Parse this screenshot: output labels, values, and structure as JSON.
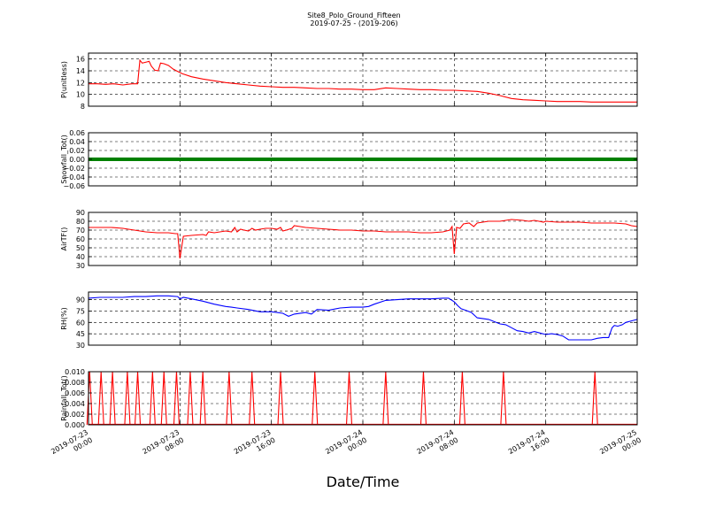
{
  "chart_data": {
    "type": "line",
    "title": "Site8_Polo_Ground_Fifteen",
    "subtitle": "2019-07-25 - (2019-206)",
    "xlabel": "Date/Time",
    "grid": true,
    "x_range": [
      "2019-07-23 00:00",
      "2019-07-25 00:00"
    ],
    "x_ticks": [
      {
        "t": 0,
        "label": [
          "2019-07-23",
          "00:00"
        ]
      },
      {
        "t": 8,
        "label": [
          "2019-07-23",
          "08:00"
        ]
      },
      {
        "t": 16,
        "label": [
          "2019-07-23",
          "16:00"
        ]
      },
      {
        "t": 24,
        "label": [
          "2019-07-24",
          "00:00"
        ]
      },
      {
        "t": 32,
        "label": [
          "2019-07-24",
          "08:00"
        ]
      },
      {
        "t": 40,
        "label": [
          "2019-07-24",
          "16:00"
        ]
      },
      {
        "t": 48,
        "label": [
          "2019-07-25",
          "00:00"
        ]
      }
    ],
    "panels": [
      {
        "ylabel": "P(unitless)",
        "ylim": [
          8,
          17
        ],
        "yticks": [
          8,
          10,
          12,
          14,
          16
        ],
        "tick_labels": [
          "8",
          "10",
          "12",
          "14",
          "16"
        ],
        "color": "#ff0000",
        "style": "line",
        "x": [
          0,
          0.8,
          1.5,
          2.2,
          3.0,
          3.8,
          4.3,
          4.5,
          4.7,
          5.1,
          5.3,
          5.5,
          5.8,
          6.1,
          6.3,
          6.6,
          7.0,
          7.4,
          7.8,
          8.2,
          9.0,
          10.0,
          11.0,
          12.0,
          13.0,
          14.0,
          15.0,
          16.0,
          17.0,
          18.0,
          19.0,
          20.0,
          21.0,
          22.0,
          23.0,
          24.0,
          25.0,
          26.0,
          27.0,
          28.0,
          29.0,
          30.0,
          31.0,
          32.0,
          33.0,
          34.0,
          35.0,
          36.0,
          37.0,
          38.0,
          39.0,
          40.0,
          41.0,
          42.0,
          43.0,
          44.0,
          45.0,
          46.0,
          47.0,
          48.0
        ],
        "y": [
          11.8,
          11.8,
          11.7,
          11.8,
          11.6,
          11.8,
          11.8,
          15.8,
          15.3,
          15.5,
          15.6,
          14.8,
          14.1,
          14.0,
          15.3,
          15.2,
          14.9,
          14.3,
          13.9,
          13.5,
          13.0,
          12.6,
          12.3,
          12.0,
          11.8,
          11.6,
          11.4,
          11.3,
          11.2,
          11.2,
          11.1,
          11.0,
          11.0,
          10.9,
          10.9,
          10.8,
          10.8,
          11.1,
          11.0,
          10.9,
          10.8,
          10.8,
          10.7,
          10.7,
          10.6,
          10.5,
          10.2,
          9.8,
          9.3,
          9.1,
          9.0,
          8.9,
          8.8,
          8.8,
          8.8,
          8.7,
          8.7,
          8.7,
          8.7,
          8.7
        ]
      },
      {
        "ylabel": "Snowfall_Tot()",
        "ylim": [
          -0.06,
          0.06
        ],
        "yticks": [
          -0.06,
          -0.04,
          -0.02,
          0.0,
          0.02,
          0.04,
          0.06
        ],
        "tick_labels": [
          "−0.06",
          "−0.04",
          "−0.02",
          "0.00",
          "0.02",
          "0.04",
          "0.06"
        ],
        "color": "#008000",
        "style": "markers",
        "x": [
          0,
          48
        ],
        "y": [
          0.0,
          0.0
        ]
      },
      {
        "ylabel": "AirTF()",
        "ylim": [
          30,
          90
        ],
        "yticks": [
          30,
          40,
          50,
          60,
          70,
          80,
          90
        ],
        "tick_labels": [
          "30",
          "40",
          "50",
          "60",
          "70",
          "80",
          "90"
        ],
        "color": "#ff0000",
        "style": "line",
        "x": [
          0,
          1,
          2,
          3,
          4,
          5,
          6,
          7,
          7.6,
          7.8,
          8.0,
          8.3,
          9,
          10,
          10.3,
          10.5,
          11,
          12,
          12.5,
          12.8,
          13.0,
          13.3,
          13.6,
          14,
          14.3,
          14.6,
          15,
          15.5,
          16,
          16.5,
          16.8,
          17,
          17.3,
          17.8,
          18,
          18.5,
          19,
          20,
          21,
          22,
          23,
          24,
          25,
          26,
          27,
          28,
          29,
          30,
          31,
          31.6,
          31.8,
          32.0,
          32.2,
          32.5,
          32.8,
          33.3,
          33.7,
          34,
          35,
          36,
          36.5,
          37,
          38,
          38.5,
          39,
          39.4,
          39.8,
          40,
          41,
          42,
          43,
          44,
          45,
          46,
          47,
          47.5,
          48
        ],
        "y": [
          73,
          73,
          73,
          72,
          70,
          68,
          67,
          67,
          66,
          66,
          38,
          63,
          64,
          65,
          64,
          68,
          67,
          69,
          68,
          73,
          68,
          71,
          70,
          69,
          72,
          70,
          71,
          72,
          72,
          71,
          73,
          69,
          70,
          72,
          75,
          74,
          73,
          72,
          71,
          70,
          70,
          69,
          69,
          68,
          68,
          68,
          67,
          67,
          68,
          70,
          74,
          43,
          73,
          72,
          77,
          78,
          74,
          78,
          80,
          80,
          81,
          82,
          81,
          80,
          81,
          80,
          79,
          80,
          79,
          79,
          79,
          78,
          78,
          78,
          77,
          75,
          74
        ]
      },
      {
        "ylabel": "RH(%)",
        "ylim": [
          30,
          100
        ],
        "yticks": [
          30,
          45,
          60,
          75,
          90
        ],
        "tick_labels": [
          "30",
          "45",
          "60",
          "75",
          "90"
        ],
        "color": "#0000ff",
        "style": "line",
        "x": [
          0,
          1,
          2,
          3,
          4,
          5,
          6,
          7,
          7.8,
          8.0,
          8.3,
          9,
          10,
          11,
          12,
          12.5,
          13,
          14,
          15,
          16,
          16.5,
          17,
          17.5,
          18,
          19,
          19.5,
          20,
          21,
          22,
          23,
          24,
          24.5,
          25,
          26,
          27,
          28,
          29,
          30,
          31,
          31.5,
          32,
          32.3,
          32.6,
          33,
          33.5,
          34,
          35,
          36,
          36.5,
          37,
          37.5,
          38,
          38.5,
          39,
          39.5,
          40,
          40.5,
          41,
          41.5,
          42,
          43,
          44,
          44.5,
          45,
          45.5,
          45.8,
          46,
          46.3,
          46.7,
          47,
          47.5,
          48
        ],
        "y": [
          92,
          93,
          93,
          93,
          94,
          94,
          95,
          95,
          94,
          91,
          93,
          91,
          88,
          84,
          81,
          80,
          79,
          77,
          74,
          74,
          73,
          72,
          68,
          71,
          73,
          71,
          77,
          76,
          79,
          80,
          80,
          81,
          84,
          89,
          90,
          91,
          91,
          91,
          92,
          92,
          87,
          82,
          78,
          76,
          73,
          66,
          64,
          58,
          57,
          53,
          49,
          48,
          46,
          48,
          46,
          44,
          45,
          44,
          42,
          37,
          37,
          37,
          39,
          40,
          40,
          53,
          56,
          55,
          57,
          60,
          62,
          64
        ]
      },
      {
        "ylabel": "Rainfall_Tot()",
        "ylim": [
          0,
          0.01
        ],
        "yticks": [
          0.0,
          0.002,
          0.004,
          0.006,
          0.008,
          0.01
        ],
        "tick_labels": [
          "0.000",
          "0.002",
          "0.004",
          "0.006",
          "0.008",
          "0.010"
        ],
        "color": "#ff0000",
        "style": "spikes",
        "spike_value": 0.01,
        "spikes_x": [
          0.1,
          1.1,
          2.1,
          3.4,
          4.3,
          5.6,
          6.6,
          7.7,
          8.9,
          10.0,
          12.3,
          14.3,
          16.8,
          19.8,
          22.8,
          26.0,
          29.3,
          32.7,
          36.3,
          44.3
        ]
      }
    ]
  }
}
